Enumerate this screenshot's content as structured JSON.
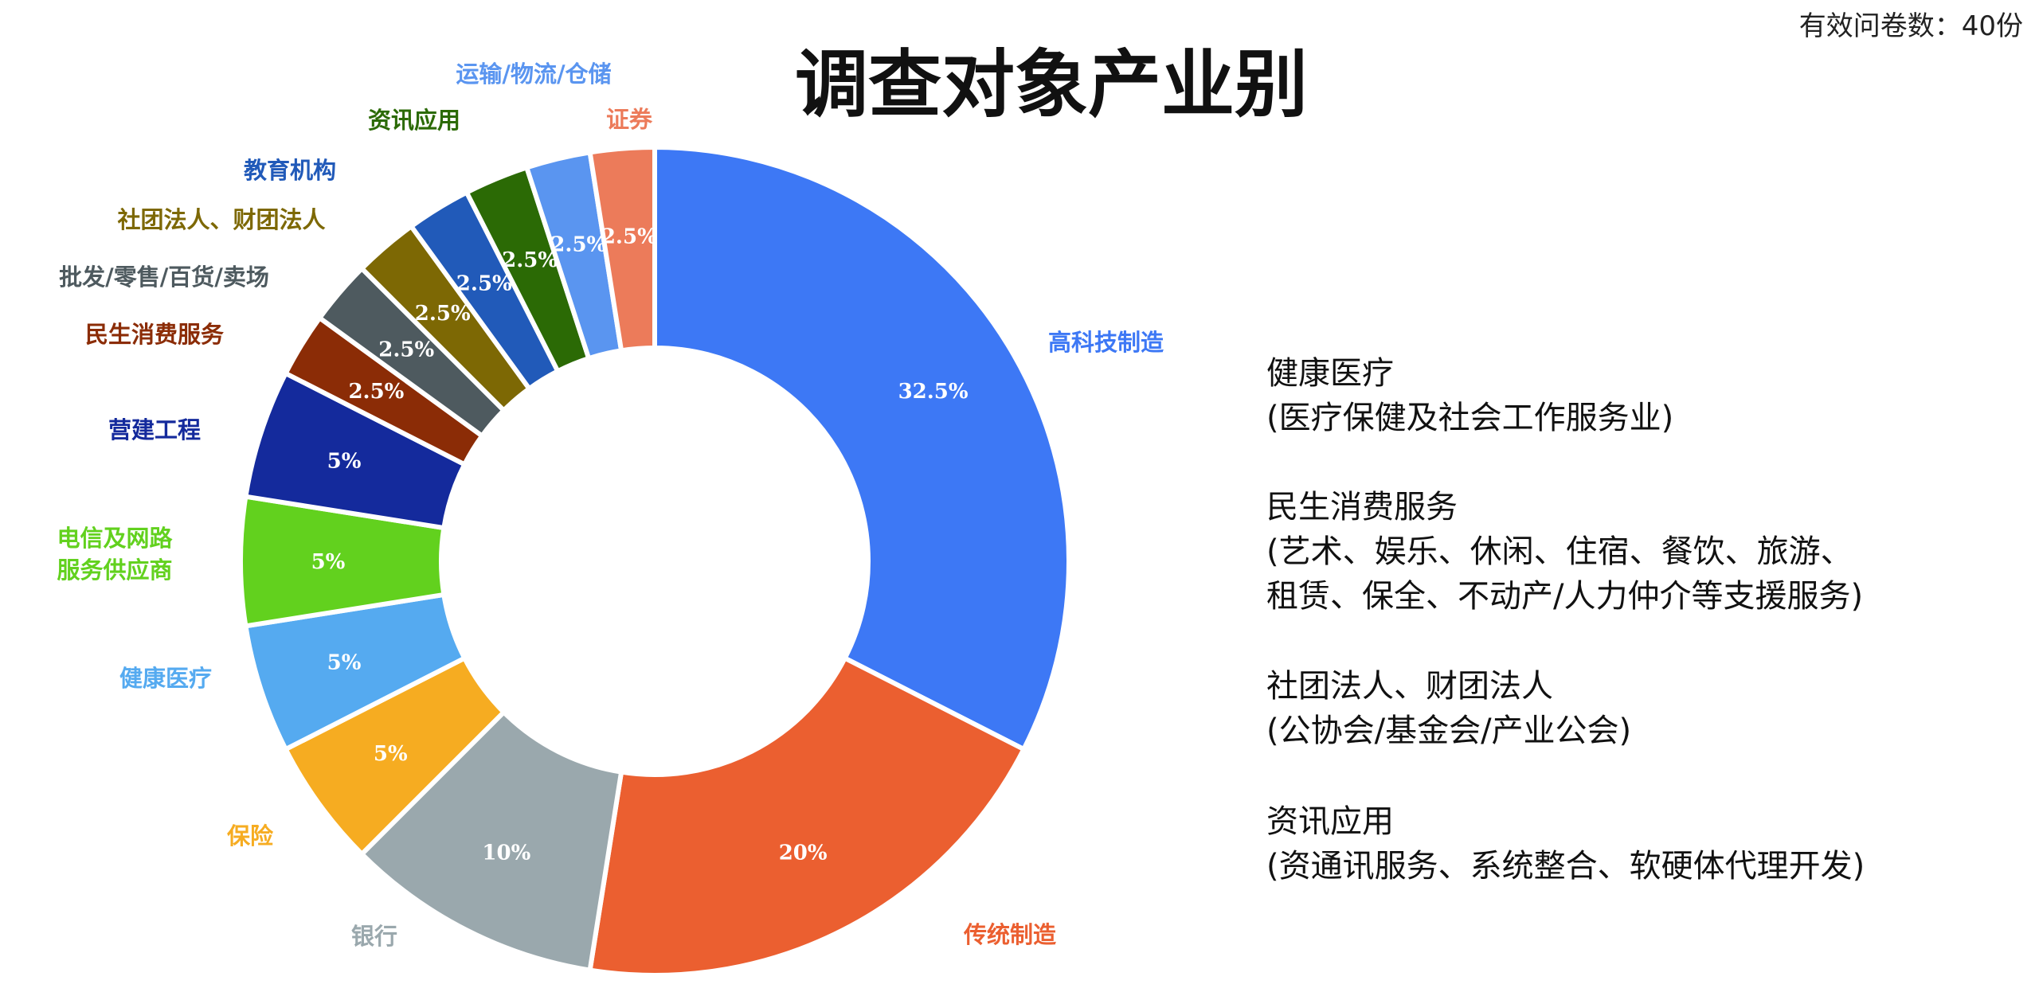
{
  "note": "有效问卷数：40份",
  "chart_data": {
    "type": "pie",
    "title": "调查对象产业别",
    "donut": true,
    "start": "12 o'clock",
    "direction": "clockwise",
    "slices": [
      {
        "label": "高科技制造",
        "value": 32.5,
        "display": "32.5%",
        "color": "#3d78f5"
      },
      {
        "label": "传统制造",
        "value": 20,
        "display": "20%",
        "color": "#eb5f30"
      },
      {
        "label": "银行",
        "value": 10,
        "display": "10%",
        "color": "#9aa8ad"
      },
      {
        "label": "保险",
        "value": 5,
        "display": "5%",
        "color": "#f6ac21"
      },
      {
        "label": "健康医疗",
        "value": 5,
        "display": "5%",
        "color": "#55aaf0"
      },
      {
        "label": [
          "电信及网路",
          "服务供应商"
        ],
        "value": 5,
        "display": "5%",
        "color": "#62d11e"
      },
      {
        "label": "营建工程",
        "value": 5,
        "display": "5%",
        "color": "#142a9c"
      },
      {
        "label": "民生消费服务",
        "value": 2.5,
        "display": "2.5%",
        "color": "#8b2c06"
      },
      {
        "label": "批发/零售/百货/卖场",
        "value": 2.5,
        "display": "2.5%",
        "color": "#4e5a5f"
      },
      {
        "label": "社团法人、财团法人",
        "value": 2.5,
        "display": "2.5%",
        "color": "#7d6804"
      },
      {
        "label": "教育机构",
        "value": 2.5,
        "display": "2.5%",
        "color": "#215ab9"
      },
      {
        "label": "资讯应用",
        "value": 2.5,
        "display": "2.5%",
        "color": "#2b6a05"
      },
      {
        "label": "运输/物流/仓储",
        "value": 2.5,
        "display": "2.5%",
        "color": "#5a95f0"
      },
      {
        "label": "证券",
        "value": 2.5,
        "display": "2.5%",
        "color": "#ec7b5a"
      }
    ]
  },
  "legend_notes": [
    {
      "term": "健康医疗",
      "desc": [
        "(医疗保健及社会工作服务业)"
      ]
    },
    {
      "term": "民生消费服务",
      "desc": [
        "(艺术、娱乐、休闲、住宿、餐饮、旅游、",
        "租赁、保全、不动产/人力仲介等支援服务)"
      ]
    },
    {
      "term": "社团法人、财团法人",
      "desc": [
        "(公协会/基金会/产业公会)"
      ]
    },
    {
      "term": "资讯应用",
      "desc": [
        "(资通讯服务、系统整合、软硬体代理开发)"
      ]
    }
  ]
}
